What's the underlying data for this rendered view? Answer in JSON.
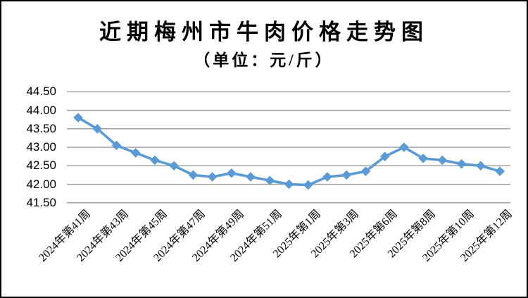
{
  "chart_data": {
    "type": "line",
    "title": "近期梅州市牛肉价格走势图",
    "subtitle": "（单位：元/斤）",
    "y_tick_labels": [
      "44.50",
      "44.00",
      "43.50",
      "43.00",
      "42.50",
      "42.00",
      "41.50"
    ],
    "ylim": [
      41.5,
      44.5
    ],
    "ytick_step": 0.5,
    "x_tick_labels": [
      "2024年第41周",
      "2024年第43周",
      "2024年第45周",
      "2024年第47周",
      "2024年第49周",
      "2024年第51周",
      "2025年第1周",
      "2025年第3周",
      "2025年第6周",
      "2025年第8周",
      "2025年第10周",
      "2025年第12周"
    ],
    "x_label_every_nth_point": 2,
    "values": [
      43.8,
      43.5,
      43.05,
      42.85,
      42.65,
      42.5,
      42.25,
      42.2,
      42.3,
      42.2,
      42.1,
      42.0,
      41.98,
      42.2,
      42.25,
      42.35,
      42.75,
      43.0,
      42.7,
      42.65,
      42.55,
      42.5,
      42.35
    ],
    "grid": "horizontal",
    "legend": "none",
    "marker": "diamond",
    "line_color": "#5B9BD5",
    "gridline_color": "#999999",
    "text_color": "#000000",
    "background_color": "#FFFFFF",
    "border_color": "#000000"
  }
}
